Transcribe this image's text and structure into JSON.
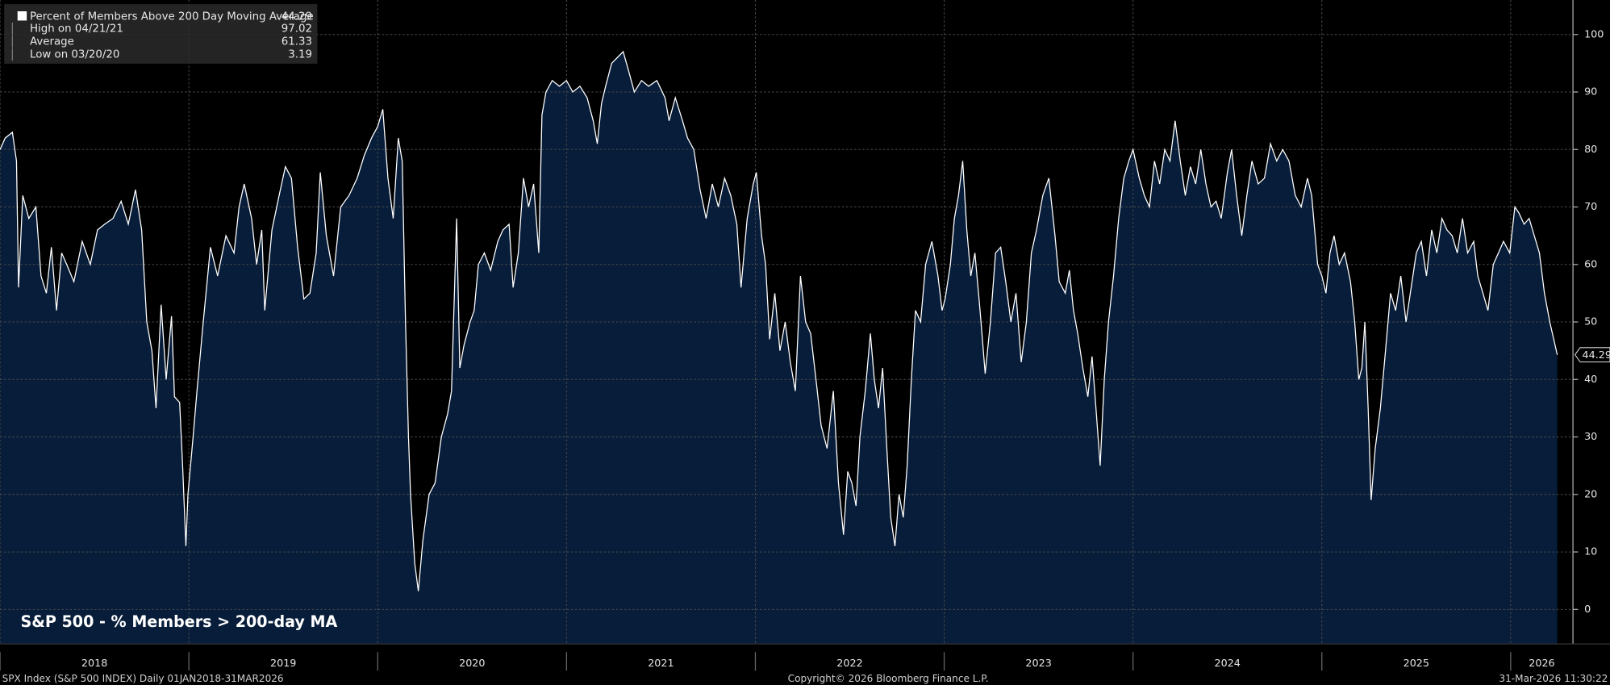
{
  "chart_data": {
    "type": "area",
    "title": "S&P 500 - % Members > 200-day MA",
    "x": [
      2018.0,
      2018.027,
      2018.065,
      2018.087,
      2018.098,
      2018.12,
      2018.152,
      2018.19,
      2018.217,
      2018.245,
      2018.272,
      2018.299,
      2018.326,
      2018.353,
      2018.391,
      2018.435,
      2018.478,
      2018.516,
      2018.554,
      2018.598,
      2018.641,
      2018.679,
      2018.717,
      2018.75,
      2018.777,
      2018.804,
      2018.826,
      2018.853,
      2018.88,
      2018.908,
      2018.924,
      2018.951,
      2018.967,
      2018.984,
      2018.995,
      2019.022,
      2019.043,
      2019.076,
      2019.114,
      2019.152,
      2019.196,
      2019.239,
      2019.266,
      2019.293,
      2019.332,
      2019.359,
      2019.386,
      2019.402,
      2019.44,
      2019.478,
      2019.511,
      2019.543,
      2019.576,
      2019.609,
      2019.641,
      2019.674,
      2019.696,
      2019.728,
      2019.766,
      2019.804,
      2019.848,
      2019.891,
      2019.929,
      2019.967,
      2020.0,
      2020.027,
      2020.054,
      2020.082,
      2020.109,
      2020.13,
      2020.147,
      2020.163,
      2020.174,
      2020.196,
      2020.215,
      2020.239,
      2020.272,
      2020.304,
      2020.337,
      2020.37,
      2020.391,
      2020.418,
      2020.435,
      2020.457,
      2020.489,
      2020.511,
      2020.533,
      2020.565,
      2020.598,
      2020.636,
      2020.663,
      2020.696,
      2020.717,
      2020.745,
      2020.772,
      2020.799,
      2020.826,
      2020.853,
      2020.87,
      2020.891,
      2020.924,
      2020.962,
      2021.0,
      2021.033,
      2021.071,
      2021.109,
      2021.141,
      2021.163,
      2021.185,
      2021.207,
      2021.239,
      2021.3,
      2021.326,
      2021.359,
      2021.397,
      2021.435,
      2021.478,
      2021.522,
      2021.543,
      2021.576,
      2021.614,
      2021.641,
      2021.674,
      2021.707,
      2021.739,
      2021.772,
      2021.804,
      2021.837,
      2021.87,
      2021.902,
      2021.924,
      2021.957,
      2021.989,
      2022.005,
      2022.033,
      2022.054,
      2022.076,
      2022.103,
      2022.13,
      2022.158,
      2022.185,
      2022.212,
      2022.239,
      2022.266,
      2022.293,
      2022.321,
      2022.348,
      2022.38,
      2022.413,
      2022.44,
      2022.467,
      2022.489,
      2022.511,
      2022.533,
      2022.554,
      2022.582,
      2022.609,
      2022.63,
      2022.652,
      2022.674,
      2022.696,
      2022.717,
      2022.739,
      2022.761,
      2022.783,
      2022.804,
      2022.826,
      2022.848,
      2022.875,
      2022.902,
      2022.935,
      2022.967,
      2022.989,
      2023.005,
      2023.033,
      2023.054,
      2023.076,
      2023.098,
      2023.12,
      2023.141,
      2023.163,
      2023.19,
      2023.217,
      2023.245,
      2023.272,
      2023.299,
      2023.326,
      2023.353,
      2023.38,
      2023.408,
      2023.435,
      2023.462,
      2023.489,
      2023.522,
      2023.554,
      2023.587,
      2023.609,
      2023.641,
      2023.663,
      2023.685,
      2023.707,
      2023.734,
      2023.761,
      2023.783,
      2023.804,
      2023.826,
      2023.848,
      2023.87,
      2023.897,
      2023.924,
      2023.951,
      2023.978,
      2024.0,
      2024.033,
      2024.06,
      2024.087,
      2024.114,
      2024.141,
      2024.168,
      2024.196,
      2024.223,
      2024.25,
      2024.277,
      2024.304,
      2024.332,
      2024.359,
      2024.386,
      2024.413,
      2024.44,
      2024.467,
      2024.5,
      2024.522,
      2024.549,
      2024.576,
      2024.603,
      2024.63,
      2024.663,
      2024.696,
      2024.728,
      2024.761,
      2024.793,
      2024.826,
      2024.859,
      2024.891,
      2024.924,
      2024.946,
      2024.978,
      2025.0,
      2025.022,
      2025.043,
      2025.065,
      2025.092,
      2025.12,
      2025.152,
      2025.174,
      2025.196,
      2025.212,
      2025.228,
      2025.245,
      2025.261,
      2025.283,
      2025.31,
      2025.337,
      2025.364,
      2025.391,
      2025.418,
      2025.446,
      2025.473,
      2025.5,
      2025.527,
      2025.554,
      2025.582,
      2025.609,
      2025.636,
      2025.663,
      2025.69,
      2025.717,
      2025.745,
      2025.772,
      2025.804,
      2025.826,
      2025.853,
      2025.88,
      2025.908,
      2025.935,
      2025.962,
      2025.995,
      2026.022,
      2026.043,
      2026.071,
      2026.098,
      2026.125,
      2026.152,
      2026.179,
      2026.207,
      2026.247
    ],
    "series": [
      {
        "name": "Percent of Members Above 200 Day Moving Average",
        "color": "#ffffff",
        "fill": "#071d3a",
        "values": [
          80,
          82,
          83,
          78,
          56,
          72,
          68,
          70,
          58,
          55,
          63,
          52,
          62,
          60,
          57,
          64,
          60,
          66,
          67,
          68,
          71,
          67,
          73,
          66,
          50,
          45,
          35,
          53,
          40,
          51,
          37,
          36,
          25,
          11,
          20,
          30,
          38,
          50,
          63,
          58,
          65,
          62,
          70,
          74,
          68,
          60,
          66,
          52,
          66,
          72,
          77,
          75,
          63,
          54,
          55,
          62,
          76,
          65,
          58,
          70,
          72,
          75,
          79,
          82,
          84,
          87,
          75,
          68,
          82,
          78,
          50,
          30,
          20,
          8,
          3.19,
          12,
          20,
          22,
          30,
          34,
          38,
          68,
          42,
          46,
          50,
          52,
          60,
          62,
          59,
          64,
          66,
          67,
          56,
          62,
          75,
          70,
          74,
          62,
          86,
          90,
          92,
          91,
          92,
          90,
          91,
          89,
          85,
          81,
          88,
          91,
          95,
          97.02,
          94,
          90,
          92,
          91,
          92,
          89,
          85,
          89,
          85,
          82,
          80,
          73,
          68,
          74,
          70,
          75,
          72,
          67,
          56,
          68,
          74,
          76,
          65,
          60,
          47,
          55,
          45,
          50,
          43,
          38,
          58,
          50,
          48,
          40,
          32,
          28,
          38,
          22,
          13,
          24,
          22,
          18,
          30,
          38,
          48,
          40,
          35,
          42,
          28,
          16,
          11,
          20,
          16,
          25,
          40,
          52,
          50,
          60,
          64,
          58,
          52,
          54,
          60,
          68,
          72,
          78,
          66,
          58,
          62,
          52,
          41,
          50,
          62,
          63,
          57,
          50,
          55,
          43,
          50,
          62,
          66,
          72,
          75,
          65,
          57,
          55,
          59,
          52,
          48,
          42,
          37,
          44,
          35,
          25,
          40,
          50,
          58,
          68,
          75,
          78,
          80,
          75,
          72,
          70,
          78,
          74,
          80,
          78,
          85,
          78,
          72,
          77,
          74,
          80,
          74,
          70,
          71,
          68,
          76,
          80,
          72,
          65,
          72,
          78,
          74,
          75,
          81,
          78,
          80,
          78,
          72,
          70,
          75,
          72,
          60,
          58,
          55,
          62,
          65,
          60,
          62,
          57,
          50,
          40,
          42,
          50,
          35,
          19,
          28,
          35,
          45,
          55,
          52,
          58,
          50,
          56,
          62,
          64,
          58,
          66,
          62,
          68,
          66,
          65,
          62,
          68,
          62,
          64,
          58,
          55,
          52,
          60,
          62,
          64,
          62,
          70,
          69,
          67,
          68,
          65,
          62,
          55,
          50,
          44.29
        ]
      }
    ],
    "stats": [
      {
        "label": "High on 04/21/21",
        "value": 97.02
      },
      {
        "label": "Average",
        "value": 61.33
      },
      {
        "label": "Low on 03/20/20",
        "value": 3.19
      }
    ],
    "xlim": [
      2018,
      2026.33
    ],
    "xticks": [
      2018,
      2019,
      2020,
      2021,
      2022,
      2023,
      2024,
      2025,
      2026
    ],
    "ylim": [
      -6,
      106
    ],
    "yticks": [
      0,
      10,
      20,
      30,
      40,
      50,
      60,
      70,
      80,
      90,
      100
    ],
    "grid": true,
    "legend": "top-left",
    "footer": {
      "left": "SPX Index (S&P 500 INDEX) Daily 01JAN2018-31MAR2026",
      "center": "Copyright© 2026 Bloomberg Finance L.P.",
      "right": "31-Mar-2026 11:30:22"
    }
  }
}
